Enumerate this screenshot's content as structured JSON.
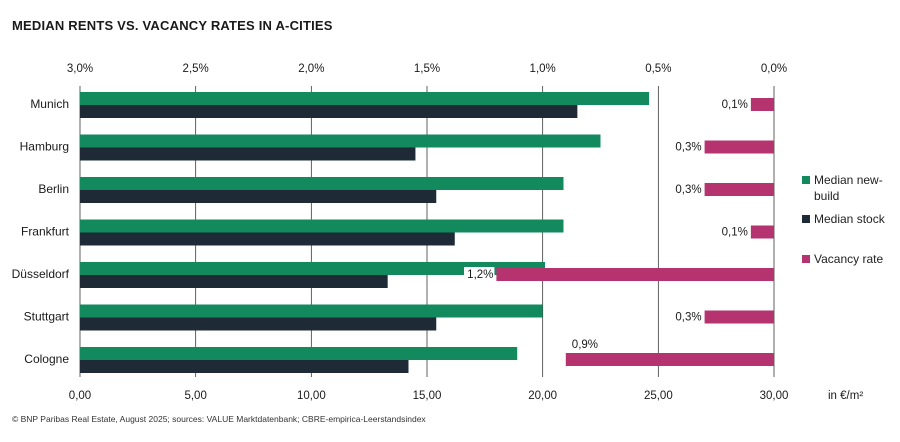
{
  "title": "MEDIAN RENTS VS. VACANCY RATES IN A-CITIES",
  "footer": "© BNP Paribas Real Estate, August 2025; sources: VALUE Marktdatenbank; CBRE-empirica-Leerstandsindex",
  "colors": {
    "new_build": "#138a5e",
    "stock": "#1e2b37",
    "vacancy": "#b5336f",
    "grid": "#3a3a3a"
  },
  "legend": [
    {
      "label": "Median new-build",
      "lines": [
        "Median new-",
        "build"
      ],
      "color": "#138a5e"
    },
    {
      "label": "Median stock",
      "lines": [
        "Median stock"
      ],
      "color": "#1e2b37"
    },
    {
      "label": "Vacancy rate",
      "lines": [
        "Vacancy rate"
      ],
      "color": "#b5336f"
    }
  ],
  "chart_data": {
    "type": "bar",
    "orientation": "horizontal",
    "title": "MEDIAN RENTS VS. VACANCY RATES IN A-CITIES",
    "categories": [
      "Munich",
      "Hamburg",
      "Berlin",
      "Frankfurt",
      "Düsseldorf",
      "Stuttgart",
      "Cologne"
    ],
    "series": [
      {
        "name": "Median new-build",
        "axis": "bottom",
        "values": [
          24.6,
          22.5,
          20.9,
          20.9,
          20.1,
          20.0,
          18.9
        ]
      },
      {
        "name": "Median stock",
        "axis": "bottom",
        "values": [
          21.5,
          14.5,
          15.4,
          16.2,
          13.3,
          15.4,
          14.2
        ]
      },
      {
        "name": "Vacancy rate",
        "axis": "top",
        "values": [
          0.1,
          0.3,
          0.3,
          0.1,
          1.2,
          0.3,
          0.9
        ],
        "labels": [
          "0,1%",
          "0,3%",
          "0,3%",
          "0,1%",
          "1,2%",
          "0,3%",
          "0,9%"
        ]
      }
    ],
    "bottom_axis": {
      "range": [
        0,
        30
      ],
      "ticks": [
        "0,00",
        "5,00",
        "10,00",
        "15,00",
        "20,00",
        "25,00",
        "30,00"
      ],
      "unit_label": "in €/m²"
    },
    "top_axis": {
      "range": [
        3.0,
        0.0
      ],
      "reversed": true,
      "ticks": [
        "3,0%",
        "2,5%",
        "2,0%",
        "1,5%",
        "1,0%",
        "0,5%",
        "0,0%"
      ]
    },
    "grid": true,
    "legend_position": "right"
  }
}
